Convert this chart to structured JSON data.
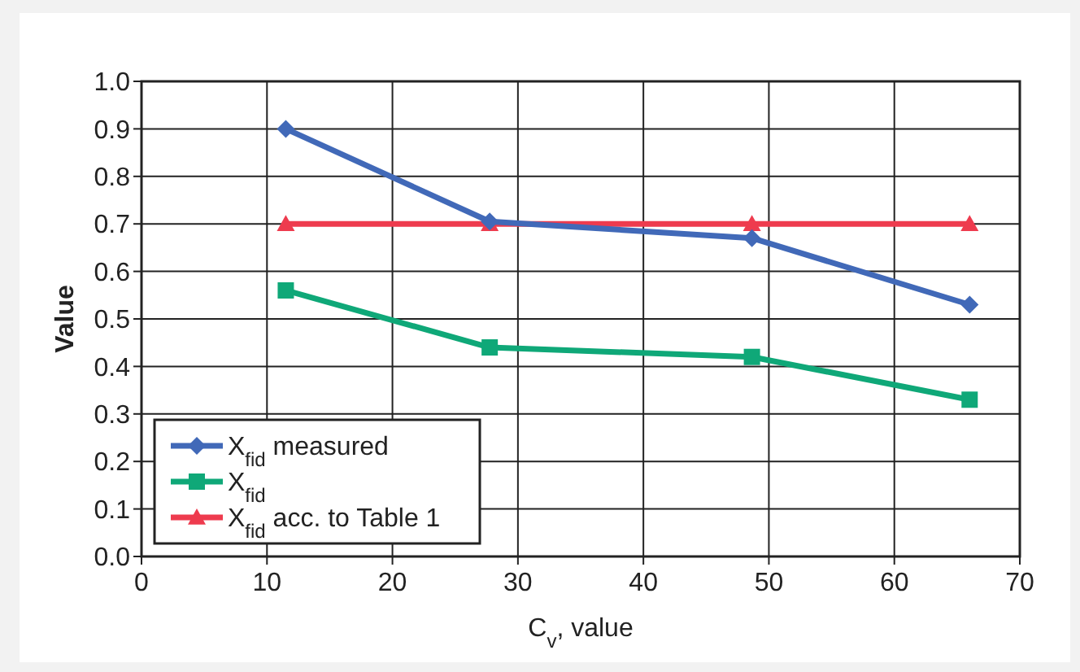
{
  "chart_data": {
    "type": "line",
    "xlabel": "C$_{v}$, value",
    "ylabel": "Value",
    "xlim": [
      0,
      70
    ],
    "xticks": [
      0,
      10,
      20,
      30,
      40,
      50,
      60,
      70
    ],
    "ylim": [
      0,
      1
    ],
    "yticks": [
      {
        "value": 0,
        "label": "0.0"
      },
      0.1,
      0.2,
      0.3,
      0.4,
      0.5,
      0.6,
      0.7,
      0.8,
      0.9,
      {
        "value": 1,
        "label": "1.0"
      }
    ],
    "grid": true,
    "legend": "bottom left",
    "line_style": "solid",
    "x": [
      11.5,
      27.75,
      48.65,
      66
    ],
    "series": [
      {
        "name": "X$_{fid}$ measured",
        "color": "#4169b8",
        "marker": "diamond",
        "values": [
          0.9,
          0.705,
          0.67,
          0.53
        ]
      },
      {
        "name": "X$_{fid}$",
        "color": "#0fa878",
        "marker": "square",
        "values": [
          0.56,
          0.44,
          0.42,
          0.33
        ]
      },
      {
        "name": "X$_{fid}$ acc. to Table 1",
        "color": "#ee3b4e",
        "marker": "triangle",
        "values": [
          0.7,
          0.7,
          0.7,
          0.7
        ]
      }
    ]
  }
}
